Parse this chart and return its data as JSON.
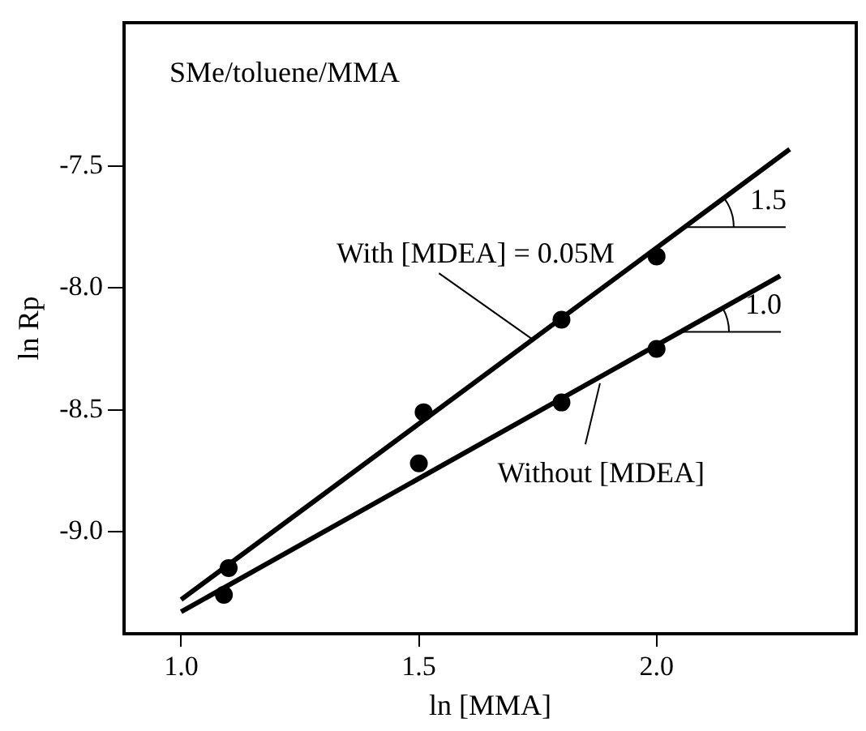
{
  "chart_data": {
    "type": "scatter",
    "title": "SMe/toluene/MMA",
    "xlabel": "ln [MMA]",
    "ylabel": "ln Rp",
    "xlim": [
      0.88,
      2.42
    ],
    "ylim": [
      -9.42,
      -6.91
    ],
    "xticks": [
      {
        "value": 1,
        "label": "1.0"
      },
      {
        "value": 1.5,
        "label": "1.5"
      },
      {
        "value": 2,
        "label": "2.0"
      }
    ],
    "yticks": [
      {
        "value": -7.5,
        "label": "-7.5"
      },
      {
        "value": -8,
        "label": "-8.0"
      },
      {
        "value": -8.5,
        "label": "-8.5"
      },
      {
        "value": -9,
        "label": "-9.0"
      }
    ],
    "series": [
      {
        "name": "With [MDEA] = 0.05M",
        "color": "#000000",
        "marker": "circle",
        "x": [
          1.1,
          1.51,
          1.8,
          2.0
        ],
        "values": [
          -9.15,
          -8.51,
          -8.13,
          -7.87
        ]
      },
      {
        "name": "Without [MDEA]",
        "color": "#000000",
        "marker": "circle",
        "x": [
          1.09,
          1.5,
          1.8,
          2.0
        ],
        "values": [
          -9.26,
          -8.72,
          -8.47,
          -8.25
        ]
      },
      {
        "type": "line",
        "color": "#000000",
        "x": [
          1.0,
          2.28
        ],
        "values": [
          -9.28,
          -7.43
        ]
      },
      {
        "type": "line",
        "color": "#000000",
        "x": [
          1.0,
          2.26
        ],
        "values": [
          -9.33,
          -7.95
        ]
      }
    ],
    "annotations": [
      {
        "text": "1.5",
        "x": 2.06,
        "y": -7.75
      },
      {
        "text": "1.0",
        "x": 2.05,
        "y": -8.18
      }
    ],
    "grid": false
  }
}
